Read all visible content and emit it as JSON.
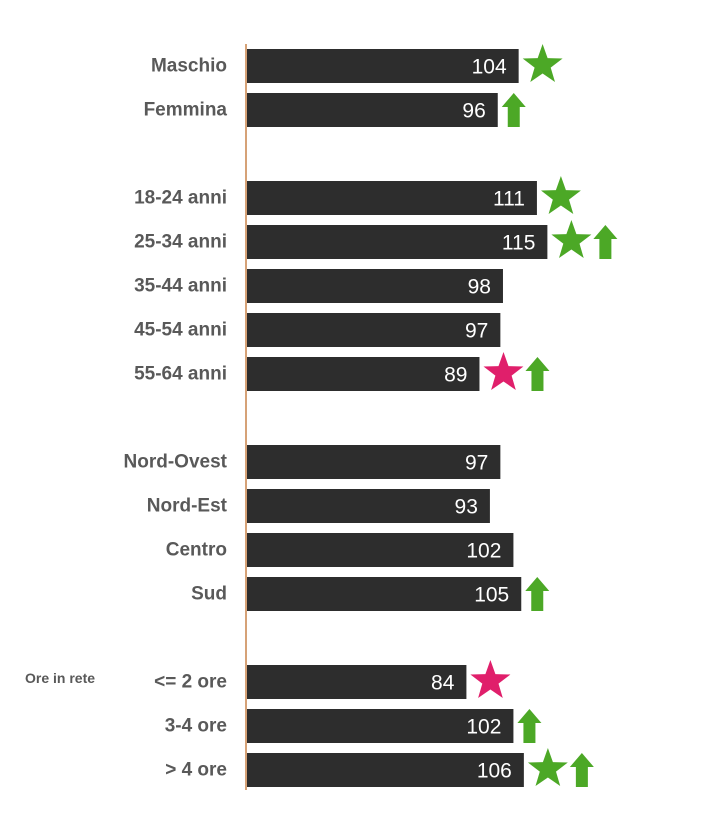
{
  "colors": {
    "bar": "#2d2d2d",
    "axis": "#c8834a",
    "label_text": "#595959",
    "value_text": "#ffffff",
    "positive_marker": "#4ca826",
    "negative_marker": "#e01f6b"
  },
  "chart_data": {
    "type": "bar",
    "orientation": "horizontal",
    "title": "",
    "xlabel": "",
    "ylabel": "",
    "grid": false,
    "legend": "none",
    "xlim": [
      0,
      120
    ],
    "groups": [
      {
        "label": "",
        "rows": [
          {
            "category": "Maschio",
            "value": 104,
            "markers": [
              "green-star"
            ]
          },
          {
            "category": "Femmina",
            "value": 96,
            "markers": [
              "green-up-arrow"
            ]
          }
        ]
      },
      {
        "label": "",
        "rows": [
          {
            "category": "18-24 anni",
            "value": 111,
            "markers": [
              "green-star"
            ]
          },
          {
            "category": "25-34 anni",
            "value": 115,
            "markers": [
              "green-star",
              "green-up-arrow"
            ]
          },
          {
            "category": "35-44 anni",
            "value": 98,
            "markers": []
          },
          {
            "category": "45-54 anni",
            "value": 97,
            "markers": []
          },
          {
            "category": "55-64 anni",
            "value": 89,
            "markers": [
              "pink-star",
              "green-up-arrow"
            ]
          }
        ]
      },
      {
        "label": "",
        "rows": [
          {
            "category": "Nord-Ovest",
            "value": 97,
            "markers": []
          },
          {
            "category": "Nord-Est",
            "value": 93,
            "markers": []
          },
          {
            "category": "Centro",
            "value": 102,
            "markers": []
          },
          {
            "category": "Sud",
            "value": 105,
            "markers": [
              "green-up-arrow"
            ]
          }
        ]
      },
      {
        "label": "Ore in rete",
        "rows": [
          {
            "category": "<= 2 ore",
            "value": 84,
            "markers": [
              "pink-star"
            ]
          },
          {
            "category": "3-4 ore",
            "value": 102,
            "markers": [
              "green-up-arrow"
            ]
          },
          {
            "category": "> 4 ore",
            "value": 106,
            "markers": [
              "green-star",
              "green-up-arrow"
            ]
          }
        ]
      }
    ]
  }
}
